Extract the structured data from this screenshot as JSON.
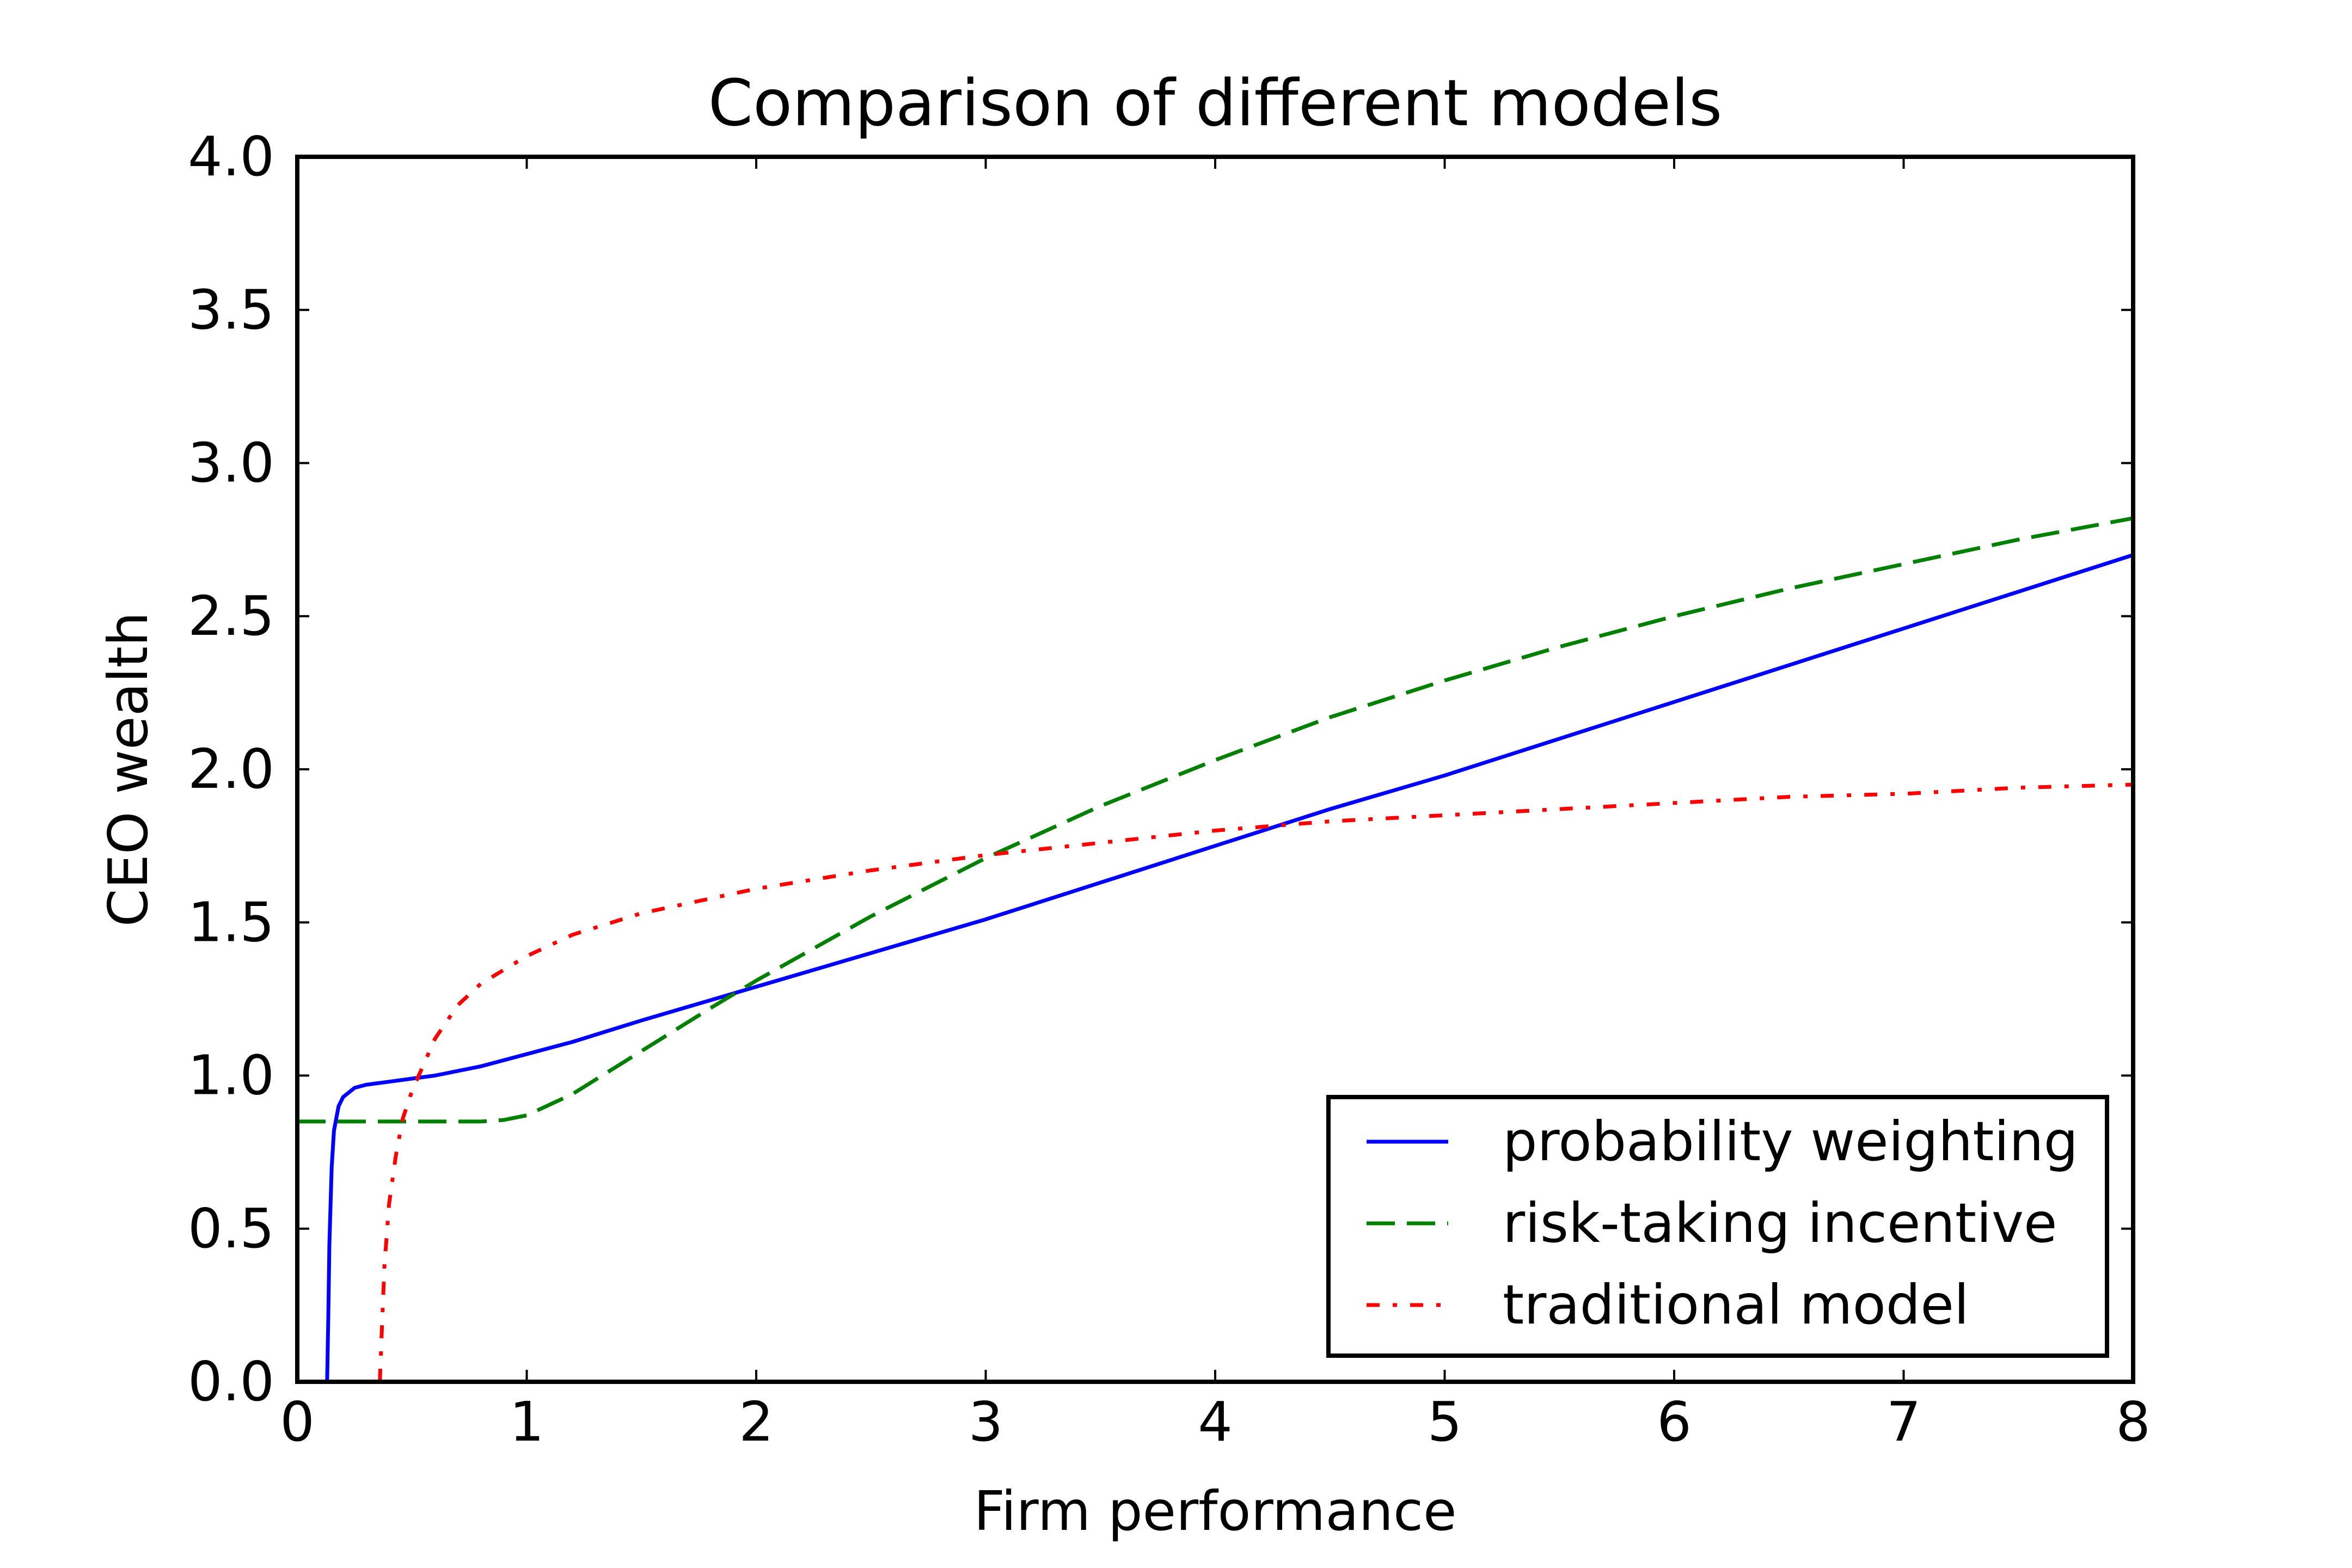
{
  "chart_data": {
    "type": "line",
    "title": "Comparison of different models",
    "xlabel": "Firm performance",
    "ylabel": "CEO wealth",
    "xlim": [
      0,
      8
    ],
    "ylim": [
      0,
      4
    ],
    "xticks": [
      0,
      1,
      2,
      3,
      4,
      5,
      6,
      7,
      8
    ],
    "xtick_labels": [
      "0",
      "1",
      "2",
      "3",
      "4",
      "5",
      "6",
      "7",
      "8"
    ],
    "yticks": [
      0,
      0.5,
      1,
      1.5,
      2,
      2.5,
      3,
      3.5,
      4
    ],
    "ytick_labels": [
      "0.0",
      "0.5",
      "1.0",
      "1.5",
      "2.0",
      "2.5",
      "3.0",
      "3.5",
      "4.0"
    ],
    "grid": false,
    "legend_position": "lower-right",
    "series": [
      {
        "name": "probability weighting",
        "color": "#0000ff",
        "linestyle": "solid",
        "x": [
          0.13,
          0.135,
          0.14,
          0.15,
          0.16,
          0.18,
          0.2,
          0.25,
          0.3,
          0.4,
          0.5,
          0.6,
          0.8,
          1.0,
          1.2,
          1.5,
          2.0,
          2.5,
          3.0,
          3.5,
          4.0,
          4.5,
          5.0,
          5.5,
          6.0,
          6.5,
          7.0,
          7.5,
          8.0
        ],
        "y": [
          0.0,
          0.2,
          0.45,
          0.7,
          0.82,
          0.9,
          0.93,
          0.96,
          0.97,
          0.98,
          0.99,
          1.0,
          1.03,
          1.07,
          1.11,
          1.18,
          1.29,
          1.4,
          1.51,
          1.63,
          1.75,
          1.87,
          1.98,
          2.1,
          2.22,
          2.34,
          2.46,
          2.58,
          2.7
        ]
      },
      {
        "name": "risk-taking incentive",
        "color": "#008000",
        "linestyle": "dashed",
        "x": [
          0.0,
          0.2,
          0.4,
          0.6,
          0.8,
          0.9,
          1.0,
          1.2,
          1.5,
          1.8,
          2.0,
          2.5,
          3.0,
          3.5,
          4.0,
          4.5,
          5.0,
          5.5,
          6.0,
          6.5,
          7.0,
          7.5,
          8.0
        ],
        "y": [
          0.85,
          0.85,
          0.85,
          0.85,
          0.85,
          0.855,
          0.87,
          0.94,
          1.08,
          1.22,
          1.31,
          1.52,
          1.71,
          1.88,
          2.03,
          2.17,
          2.29,
          2.4,
          2.5,
          2.59,
          2.67,
          2.75,
          2.82
        ]
      },
      {
        "name": "traditional model",
        "color": "#ff0000",
        "linestyle": "dashdot",
        "x": [
          0.36,
          0.37,
          0.38,
          0.4,
          0.43,
          0.46,
          0.5,
          0.6,
          0.7,
          0.8,
          1.0,
          1.2,
          1.5,
          2.0,
          2.5,
          3.0,
          3.5,
          4.0,
          4.5,
          5.0,
          5.5,
          6.0,
          6.5,
          7.0,
          7.5,
          8.0
        ],
        "y": [
          0.0,
          0.2,
          0.38,
          0.58,
          0.74,
          0.86,
          0.95,
          1.12,
          1.23,
          1.3,
          1.39,
          1.46,
          1.53,
          1.61,
          1.67,
          1.72,
          1.76,
          1.8,
          1.83,
          1.85,
          1.87,
          1.89,
          1.91,
          1.92,
          1.94,
          1.95
        ]
      }
    ]
  }
}
